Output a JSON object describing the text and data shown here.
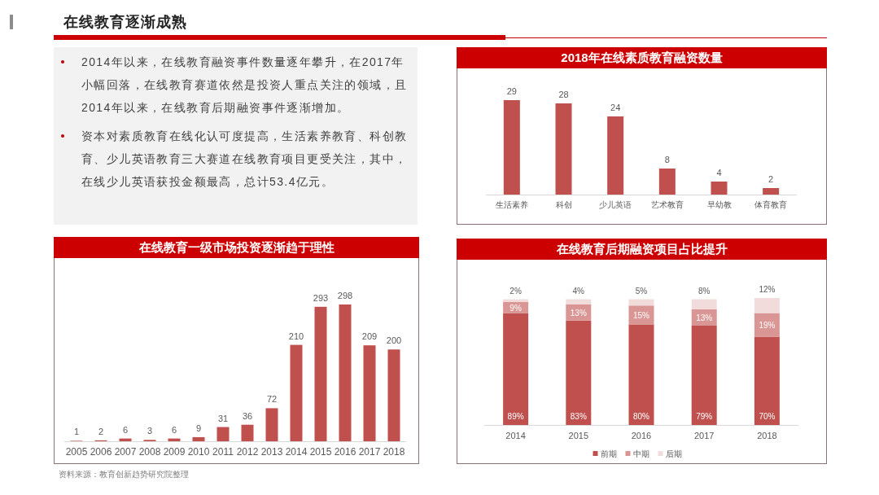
{
  "chart_data": [
    {
      "type": "other",
      "title": "在线教育逐渐成熟",
      "annotations": [
        "2014年以来，在线教育融资事件数量逐年攀升，在2017年小幅回落，在线教育赛道依然是投资人重点关注的领域，且2014年以来，在线教育后期融资事件逐渐增加。",
        "资本对素质教育在线化认可度提高，生活素养教育、科创教育、少儿英语教育三大赛道在线教育项目更受关注，其中，在线少儿英语获投金额最高，总计53.4亿元。"
      ]
    },
    {
      "type": "bar",
      "title": "2018年在线素质教育融资数量",
      "categories": [
        "生活素养",
        "科创",
        "少儿英语",
        "艺术教育",
        "早幼教",
        "体育教育"
      ],
      "values": [
        29,
        28,
        24,
        8,
        4,
        2
      ],
      "color": "#c0504d",
      "data_labels": true
    },
    {
      "type": "bar",
      "title": "在线教育一级市场投资逐渐趋于理性",
      "categories": [
        "2005",
        "2006",
        "2007",
        "2008",
        "2009",
        "2010",
        "2011",
        "2012",
        "2013",
        "2014",
        "2015",
        "2016",
        "2017",
        "2018"
      ],
      "values": [
        1,
        2,
        6,
        3,
        6,
        9,
        31,
        36,
        72,
        210,
        293,
        298,
        209,
        200
      ],
      "color": "#c0504d",
      "data_labels": true,
      "annotations": [
        "资料来源：教育创新趋势研究院整理"
      ]
    },
    {
      "type": "bar",
      "title": "在线教育后期融资项目占比提升",
      "categories": [
        "2014",
        "2015",
        "2016",
        "2017",
        "2018"
      ],
      "stacked": true,
      "legend": "bottom",
      "series": [
        {
          "name": "前期",
          "color": "#c0504d",
          "values": [
            89,
            83,
            80,
            79,
            70
          ],
          "value_labels": [
            "89%",
            "83%",
            "80%",
            "79%",
            "70%"
          ]
        },
        {
          "name": "中期",
          "color": "#d99694",
          "values": [
            9,
            13,
            15,
            13,
            19
          ],
          "value_labels": [
            "9%",
            "13%",
            "15%",
            "13%",
            "19%"
          ]
        },
        {
          "name": "后期",
          "color": "#f2dcdb",
          "values": [
            2,
            4,
            5,
            8,
            12
          ],
          "value_labels": [
            "2%",
            "4%",
            "5%",
            "8%",
            "12%"
          ]
        }
      ]
    }
  ]
}
